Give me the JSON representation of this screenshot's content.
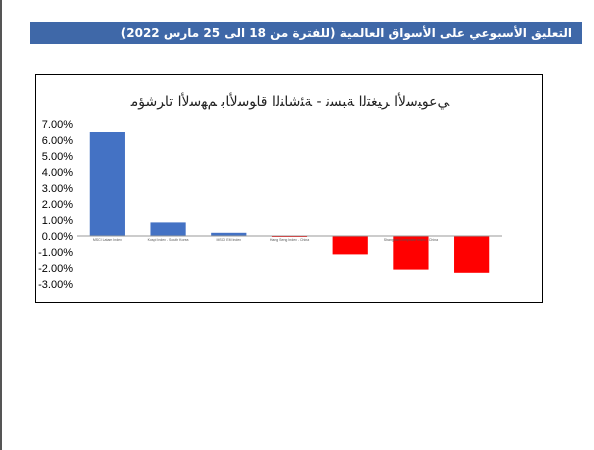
{
  "page": {
    "banner_title": "التعليق الأسبوعي على الأسواق العالمية (للفترة من 18 الى 25  مارس 2022)"
  },
  "colors": {
    "banner": "#3f68a8",
    "positive_bar": "#4472c4",
    "negative_bar": "#ff0000"
  },
  "chart_data": {
    "type": "bar",
    "title": "ﻲﻋﻮﺒﺳﻷا ﺮﻴﻐﺘﻟا ﺔﺒﺴﻧ - ﺔﺌﺷﺎﻨﻟا قاﻮﺳﻷﺎﺑ ﻢﻬﺳﻷا تاﺮﺷﺆﻣ",
    "categories": [
      "MSCI Latam Index",
      "Kospi Index - South Korea",
      "MSCI EM Index",
      "Hang Seng Index - China",
      "",
      "Shanghai Composite Index - China",
      ""
    ],
    "values": [
      6.5,
      0.85,
      0.2,
      -0.05,
      -1.15,
      -2.1,
      -2.3
    ],
    "yticks": [
      "7.00%",
      "6.00%",
      "5.00%",
      "4.00%",
      "3.00%",
      "2.00%",
      "1.00%",
      "0.00%",
      "-1.00%",
      "-2.00%",
      "-3.00%"
    ],
    "ylim": [
      -3,
      7
    ],
    "xlabel": "",
    "ylabel": "",
    "legend": "none",
    "grid": false
  }
}
